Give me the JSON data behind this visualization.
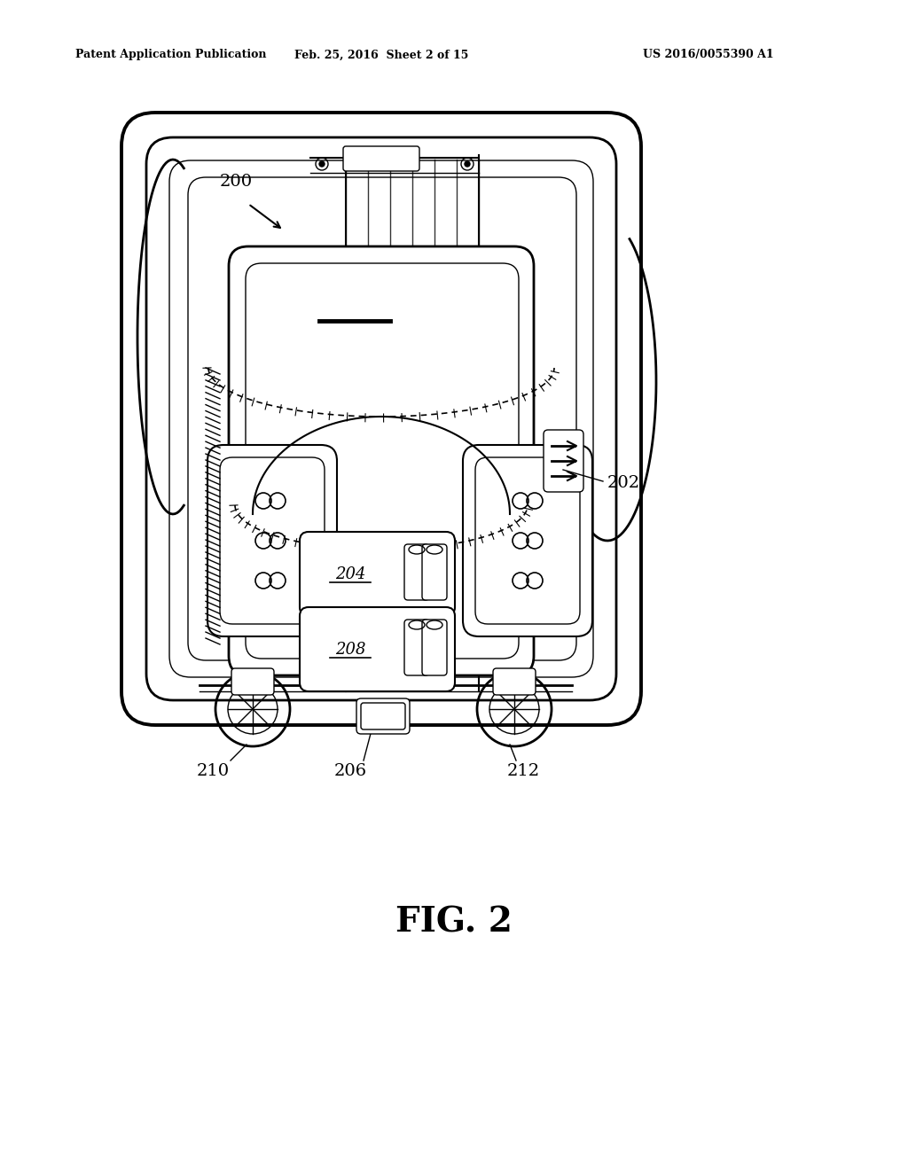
{
  "bg_color": "#ffffff",
  "header_left": "Patent Application Publication",
  "header_mid": "Feb. 25, 2016  Sheet 2 of 15",
  "header_right": "US 2016/0055390 A1",
  "fig_label": "FIG. 2",
  "lw_thick": 2.8,
  "lw_main": 2.0,
  "lw_med": 1.5,
  "lw_thin": 1.0,
  "color": "black"
}
